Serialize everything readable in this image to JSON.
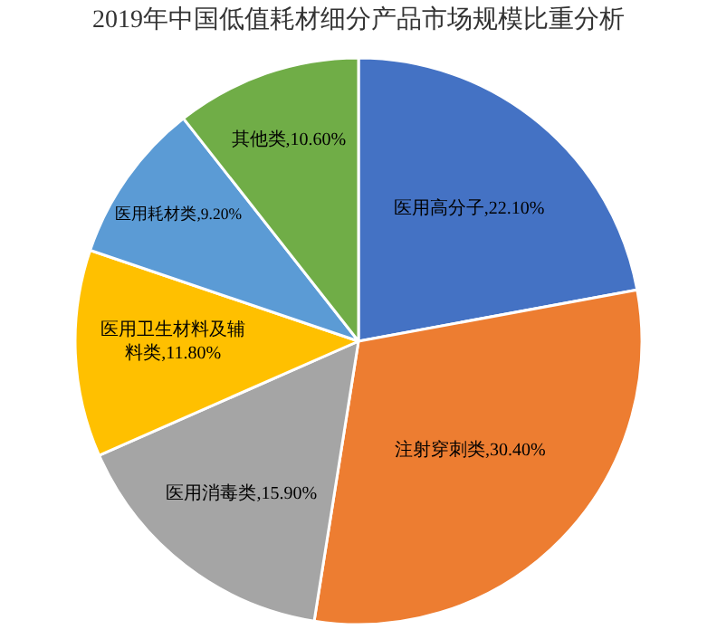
{
  "chart_data": {
    "type": "pie",
    "title": "2019年中国低值耗材细分产品市场规模比重分析",
    "categories": [
      "医用高分子",
      "注射穿刺类",
      "医用消毒类",
      "医用卫生材料及辅料类",
      "医用耗材类",
      "其他类"
    ],
    "values": [
      22.1,
      30.4,
      15.9,
      11.8,
      9.2,
      10.6
    ],
    "colors": [
      "#4472c4",
      "#ed7d31",
      "#a5a5a5",
      "#ffc000",
      "#5b9bd5",
      "#70ad47"
    ],
    "value_labels": [
      "22.10%",
      "30.40%",
      "15.90%",
      "11.80%",
      "9.20%",
      "10.60%"
    ],
    "legend": false
  }
}
